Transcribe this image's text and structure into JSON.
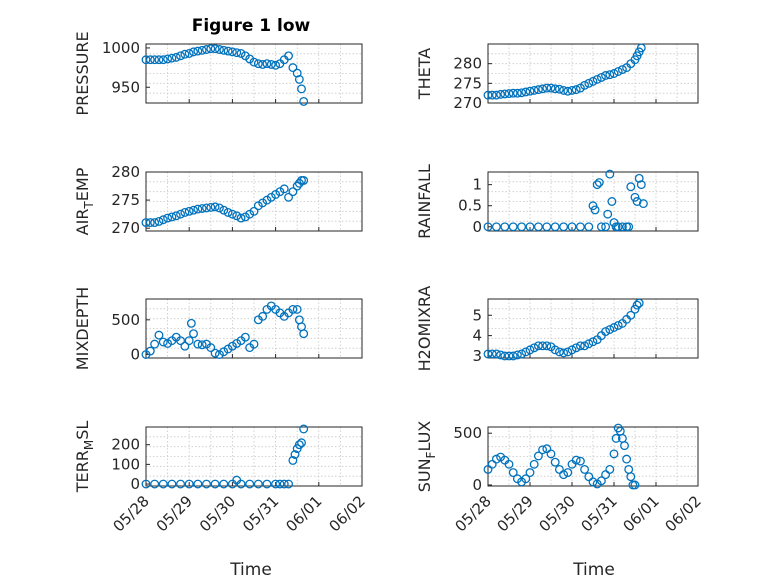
{
  "figure_title": "Figure 1 low",
  "x_axis_label": "Time",
  "x_ticks": [
    "05/28",
    "05/29",
    "05/30",
    "05/31",
    "06/01",
    "06/02"
  ],
  "colors": {
    "marker": "#0072bd",
    "axes": "#262626",
    "grid": "#c8c8c8"
  },
  "chart_data": [
    {
      "type": "scatter",
      "name": "pressure",
      "ylabel": "PRESSURE",
      "ylabel_sub": "",
      "ylim": [
        930,
        1005
      ],
      "yticks": [
        950,
        1000
      ],
      "xlim": [
        0,
        5
      ],
      "xlabel": "",
      "points": [
        [
          0,
          985
        ],
        [
          0.1,
          985
        ],
        [
          0.2,
          985
        ],
        [
          0.3,
          985
        ],
        [
          0.4,
          985
        ],
        [
          0.5,
          986
        ],
        [
          0.6,
          987
        ],
        [
          0.7,
          988
        ],
        [
          0.8,
          990
        ],
        [
          0.9,
          992
        ],
        [
          1.0,
          993
        ],
        [
          1.1,
          995
        ],
        [
          1.2,
          996
        ],
        [
          1.3,
          997
        ],
        [
          1.4,
          998
        ],
        [
          1.5,
          999
        ],
        [
          1.6,
          999
        ],
        [
          1.7,
          998
        ],
        [
          1.8,
          997
        ],
        [
          1.9,
          996
        ],
        [
          2.0,
          995
        ],
        [
          2.1,
          994
        ],
        [
          2.2,
          993
        ],
        [
          2.3,
          990
        ],
        [
          2.4,
          986
        ],
        [
          2.5,
          982
        ],
        [
          2.6,
          980
        ],
        [
          2.7,
          979
        ],
        [
          2.8,
          980
        ],
        [
          2.9,
          979
        ],
        [
          3.0,
          978
        ],
        [
          3.1,
          980
        ],
        [
          3.2,
          985
        ],
        [
          3.3,
          990
        ],
        [
          3.4,
          975
        ],
        [
          3.5,
          968
        ],
        [
          3.55,
          960
        ],
        [
          3.6,
          948
        ],
        [
          3.65,
          932
        ]
      ]
    },
    {
      "type": "scatter",
      "name": "theta",
      "ylabel": "THETA",
      "ylabel_sub": "",
      "ylim": [
        270,
        285
      ],
      "yticks": [
        270,
        275,
        280
      ],
      "xlim": [
        0,
        5
      ],
      "xlabel": "",
      "points": [
        [
          0,
          272
        ],
        [
          0.1,
          272
        ],
        [
          0.2,
          272
        ],
        [
          0.3,
          272.2
        ],
        [
          0.4,
          272.3
        ],
        [
          0.5,
          272.4
        ],
        [
          0.6,
          272.5
        ],
        [
          0.7,
          272.5
        ],
        [
          0.8,
          272.6
        ],
        [
          0.9,
          272.8
        ],
        [
          1.0,
          273
        ],
        [
          1.1,
          273.2
        ],
        [
          1.2,
          273.4
        ],
        [
          1.3,
          273.6
        ],
        [
          1.4,
          273.8
        ],
        [
          1.5,
          273.8
        ],
        [
          1.6,
          273.6
        ],
        [
          1.7,
          273.5
        ],
        [
          1.8,
          273.2
        ],
        [
          1.9,
          273
        ],
        [
          2.0,
          273.2
        ],
        [
          2.1,
          273.4
        ],
        [
          2.2,
          273.8
        ],
        [
          2.3,
          274.5
        ],
        [
          2.4,
          275
        ],
        [
          2.5,
          275.5
        ],
        [
          2.6,
          276
        ],
        [
          2.7,
          276.5
        ],
        [
          2.8,
          277
        ],
        [
          2.9,
          277.2
        ],
        [
          3.0,
          277.5
        ],
        [
          3.1,
          278
        ],
        [
          3.2,
          278.5
        ],
        [
          3.3,
          279
        ],
        [
          3.4,
          280
        ],
        [
          3.5,
          281
        ],
        [
          3.55,
          282
        ],
        [
          3.6,
          283
        ],
        [
          3.65,
          284
        ]
      ]
    },
    {
      "type": "scatter",
      "name": "air-temp",
      "ylabel": "AIR",
      "ylabel_sub": "T",
      "ylabel_rest": "EMP",
      "ylim": [
        269.5,
        280
      ],
      "yticks": [
        270,
        275,
        280
      ],
      "xlim": [
        0,
        5
      ],
      "xlabel": "",
      "points": [
        [
          0,
          271
        ],
        [
          0.1,
          271
        ],
        [
          0.2,
          271
        ],
        [
          0.3,
          271.2
        ],
        [
          0.4,
          271.5
        ],
        [
          0.5,
          271.8
        ],
        [
          0.6,
          272
        ],
        [
          0.7,
          272.2
        ],
        [
          0.8,
          272.5
        ],
        [
          0.9,
          272.8
        ],
        [
          1.0,
          273
        ],
        [
          1.1,
          273.2
        ],
        [
          1.2,
          273.4
        ],
        [
          1.3,
          273.5
        ],
        [
          1.4,
          273.6
        ],
        [
          1.5,
          273.7
        ],
        [
          1.6,
          273.8
        ],
        [
          1.7,
          273.6
        ],
        [
          1.8,
          273.2
        ],
        [
          1.9,
          272.8
        ],
        [
          2.0,
          272.5
        ],
        [
          2.1,
          272.2
        ],
        [
          2.2,
          271.8
        ],
        [
          2.3,
          272
        ],
        [
          2.4,
          272.5
        ],
        [
          2.5,
          273
        ],
        [
          2.6,
          274
        ],
        [
          2.7,
          274.5
        ],
        [
          2.8,
          275
        ],
        [
          2.9,
          275.5
        ],
        [
          3.0,
          276
        ],
        [
          3.1,
          276.5
        ],
        [
          3.2,
          277
        ],
        [
          3.3,
          275.5
        ],
        [
          3.4,
          276.5
        ],
        [
          3.5,
          277.5
        ],
        [
          3.55,
          278
        ],
        [
          3.6,
          278.5
        ],
        [
          3.65,
          278.5
        ]
      ]
    },
    {
      "type": "scatter",
      "name": "rainfall",
      "ylabel": "RAINFALL",
      "ylabel_sub": "",
      "ylim": [
        -0.1,
        1.3
      ],
      "yticks": [
        0,
        0.5,
        1
      ],
      "xlim": [
        0,
        5
      ],
      "xlabel": "",
      "points": [
        [
          0,
          0
        ],
        [
          0.2,
          0
        ],
        [
          0.4,
          0
        ],
        [
          0.6,
          0
        ],
        [
          0.8,
          0
        ],
        [
          1.0,
          0
        ],
        [
          1.2,
          0
        ],
        [
          1.4,
          0
        ],
        [
          1.6,
          0
        ],
        [
          1.8,
          0
        ],
        [
          2.0,
          0
        ],
        [
          2.2,
          0
        ],
        [
          2.4,
          0
        ],
        [
          2.5,
          0.5
        ],
        [
          2.55,
          0.4
        ],
        [
          2.6,
          1.0
        ],
        [
          2.65,
          1.05
        ],
        [
          2.7,
          0
        ],
        [
          2.8,
          0
        ],
        [
          2.85,
          0.3
        ],
        [
          2.9,
          1.25
        ],
        [
          2.95,
          0.6
        ],
        [
          3.0,
          0.1
        ],
        [
          3.05,
          0
        ],
        [
          3.1,
          0
        ],
        [
          3.2,
          0
        ],
        [
          3.3,
          0
        ],
        [
          3.35,
          0
        ],
        [
          3.4,
          0.95
        ],
        [
          3.5,
          0.7
        ],
        [
          3.55,
          0.6
        ],
        [
          3.6,
          1.15
        ],
        [
          3.65,
          1.0
        ],
        [
          3.7,
          0.55
        ]
      ]
    },
    {
      "type": "scatter",
      "name": "mixdepth",
      "ylabel": "MIXDEPTH",
      "ylabel_sub": "",
      "ylim": [
        -50,
        800
      ],
      "yticks": [
        0,
        500
      ],
      "xlim": [
        0,
        5
      ],
      "xlabel": "",
      "points": [
        [
          0,
          0
        ],
        [
          0.1,
          50
        ],
        [
          0.2,
          150
        ],
        [
          0.3,
          280
        ],
        [
          0.4,
          180
        ],
        [
          0.5,
          160
        ],
        [
          0.6,
          200
        ],
        [
          0.7,
          250
        ],
        [
          0.8,
          200
        ],
        [
          0.9,
          120
        ],
        [
          1.0,
          200
        ],
        [
          1.05,
          450
        ],
        [
          1.1,
          300
        ],
        [
          1.2,
          150
        ],
        [
          1.3,
          140
        ],
        [
          1.4,
          150
        ],
        [
          1.5,
          100
        ],
        [
          1.6,
          20
        ],
        [
          1.7,
          0
        ],
        [
          1.8,
          40
        ],
        [
          1.9,
          80
        ],
        [
          2.0,
          120
        ],
        [
          2.1,
          160
        ],
        [
          2.2,
          200
        ],
        [
          2.3,
          250
        ],
        [
          2.4,
          100
        ],
        [
          2.5,
          150
        ],
        [
          2.6,
          500
        ],
        [
          2.7,
          550
        ],
        [
          2.8,
          650
        ],
        [
          2.9,
          700
        ],
        [
          3.0,
          650
        ],
        [
          3.1,
          600
        ],
        [
          3.2,
          550
        ],
        [
          3.3,
          600
        ],
        [
          3.4,
          650
        ],
        [
          3.5,
          650
        ],
        [
          3.55,
          500
        ],
        [
          3.6,
          400
        ],
        [
          3.65,
          300
        ]
      ]
    },
    {
      "type": "scatter",
      "name": "h2omixra",
      "ylabel": "H2OMIXRA",
      "ylabel_sub": "",
      "ylim": [
        2.9,
        5.8
      ],
      "yticks": [
        3,
        4,
        5
      ],
      "xlim": [
        0,
        5
      ],
      "xlabel": "",
      "points": [
        [
          0,
          3.1
        ],
        [
          0.1,
          3.1
        ],
        [
          0.2,
          3.1
        ],
        [
          0.3,
          3.05
        ],
        [
          0.4,
          3.0
        ],
        [
          0.5,
          3.0
        ],
        [
          0.6,
          3.0
        ],
        [
          0.7,
          3.05
        ],
        [
          0.8,
          3.1
        ],
        [
          0.9,
          3.2
        ],
        [
          1.0,
          3.3
        ],
        [
          1.1,
          3.4
        ],
        [
          1.2,
          3.5
        ],
        [
          1.3,
          3.5
        ],
        [
          1.4,
          3.5
        ],
        [
          1.5,
          3.45
        ],
        [
          1.6,
          3.3
        ],
        [
          1.7,
          3.2
        ],
        [
          1.8,
          3.15
        ],
        [
          1.9,
          3.2
        ],
        [
          2.0,
          3.3
        ],
        [
          2.1,
          3.4
        ],
        [
          2.2,
          3.5
        ],
        [
          2.3,
          3.5
        ],
        [
          2.4,
          3.6
        ],
        [
          2.5,
          3.7
        ],
        [
          2.6,
          3.8
        ],
        [
          2.7,
          4.0
        ],
        [
          2.8,
          4.2
        ],
        [
          2.9,
          4.3
        ],
        [
          3.0,
          4.4
        ],
        [
          3.1,
          4.5
        ],
        [
          3.2,
          4.6
        ],
        [
          3.3,
          4.8
        ],
        [
          3.4,
          5.0
        ],
        [
          3.5,
          5.3
        ],
        [
          3.55,
          5.5
        ],
        [
          3.6,
          5.6
        ]
      ]
    },
    {
      "type": "scatter",
      "name": "terr-msl",
      "ylabel": "TERR",
      "ylabel_sub": "M",
      "ylabel_rest": "SL",
      "ylim": [
        -10,
        290
      ],
      "yticks": [
        0,
        100,
        200
      ],
      "xlim": [
        0,
        5
      ],
      "xlabel": "Time",
      "points": [
        [
          0,
          0
        ],
        [
          0.2,
          0
        ],
        [
          0.4,
          0
        ],
        [
          0.6,
          0
        ],
        [
          0.8,
          0
        ],
        [
          1.0,
          0
        ],
        [
          1.2,
          0
        ],
        [
          1.4,
          0
        ],
        [
          1.6,
          0
        ],
        [
          1.8,
          0
        ],
        [
          2.0,
          0
        ],
        [
          2.1,
          20
        ],
        [
          2.2,
          0
        ],
        [
          2.4,
          0
        ],
        [
          2.6,
          0
        ],
        [
          2.8,
          0
        ],
        [
          3.0,
          0
        ],
        [
          3.1,
          0
        ],
        [
          3.2,
          0
        ],
        [
          3.3,
          0
        ],
        [
          3.4,
          120
        ],
        [
          3.45,
          150
        ],
        [
          3.5,
          180
        ],
        [
          3.55,
          200
        ],
        [
          3.6,
          210
        ],
        [
          3.65,
          280
        ]
      ]
    },
    {
      "type": "scatter",
      "name": "sun-flux",
      "ylabel": "SUN",
      "ylabel_sub": "F",
      "ylabel_rest": "LUX",
      "ylim": [
        -10,
        560
      ],
      "yticks": [
        0,
        500
      ],
      "xlim": [
        0,
        5
      ],
      "xlabel": "Time",
      "points": [
        [
          0,
          150
        ],
        [
          0.1,
          200
        ],
        [
          0.2,
          250
        ],
        [
          0.3,
          270
        ],
        [
          0.4,
          240
        ],
        [
          0.5,
          200
        ],
        [
          0.6,
          120
        ],
        [
          0.7,
          60
        ],
        [
          0.8,
          30
        ],
        [
          0.9,
          60
        ],
        [
          1.0,
          120
        ],
        [
          1.1,
          200
        ],
        [
          1.2,
          280
        ],
        [
          1.3,
          340
        ],
        [
          1.4,
          350
        ],
        [
          1.5,
          300
        ],
        [
          1.6,
          220
        ],
        [
          1.7,
          150
        ],
        [
          1.8,
          100
        ],
        [
          1.9,
          120
        ],
        [
          2.0,
          200
        ],
        [
          2.1,
          240
        ],
        [
          2.2,
          230
        ],
        [
          2.3,
          150
        ],
        [
          2.4,
          80
        ],
        [
          2.5,
          30
        ],
        [
          2.6,
          10
        ],
        [
          2.7,
          40
        ],
        [
          2.8,
          100
        ],
        [
          2.9,
          150
        ],
        [
          3.0,
          300
        ],
        [
          3.05,
          450
        ],
        [
          3.1,
          550
        ],
        [
          3.15,
          520
        ],
        [
          3.2,
          450
        ],
        [
          3.25,
          380
        ],
        [
          3.3,
          250
        ],
        [
          3.35,
          150
        ],
        [
          3.4,
          80
        ],
        [
          3.45,
          0
        ],
        [
          3.5,
          0
        ]
      ]
    }
  ]
}
